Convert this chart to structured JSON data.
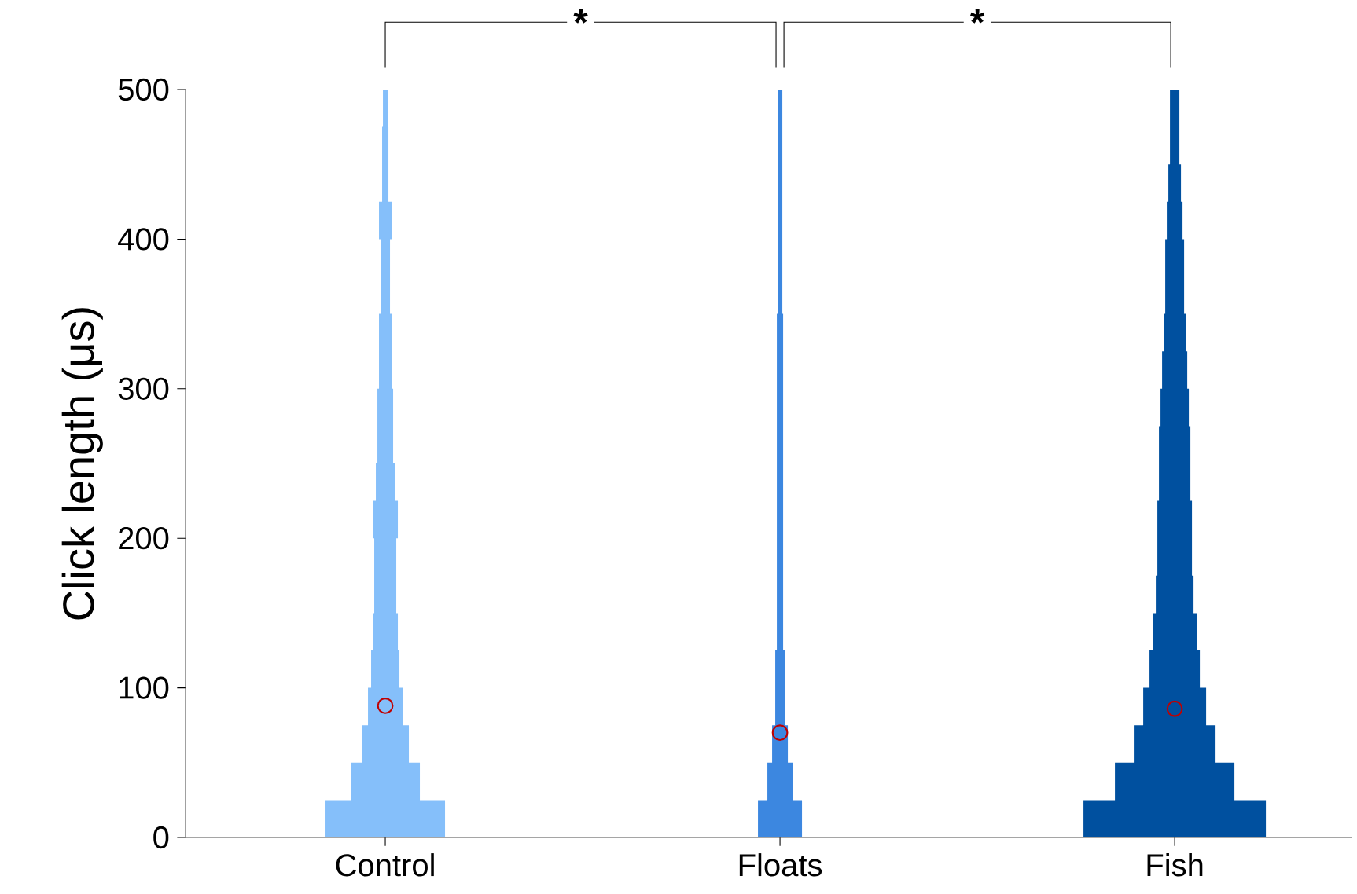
{
  "chart_data": {
    "type": "scatter",
    "ylabel": "Click length (μs)",
    "categories": [
      "Control",
      "Floats",
      "Fish"
    ],
    "ylim": [
      0,
      500
    ],
    "yticks": [
      0,
      100,
      200,
      300,
      400,
      500
    ],
    "annotations": [
      "*",
      "*"
    ],
    "series": [
      {
        "color": "#c00000",
        "marker": "circle",
        "x": [
          "Control",
          "Floats",
          "Fish"
        ],
        "values": [
          88,
          70,
          86
        ]
      }
    ]
  }
}
